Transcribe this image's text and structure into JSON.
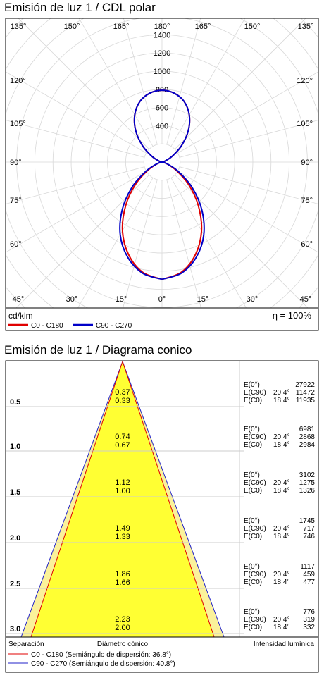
{
  "polar": {
    "title": "Emisión de luz 1 / CDL polar",
    "unit": "cd/klm",
    "efficiency": "η = 100%",
    "radial_ticks": [
      400,
      600,
      800,
      1000,
      1200,
      1400
    ],
    "angle_labels_top": [
      "135°",
      "150°",
      "165°",
      "180°",
      "165°",
      "150°",
      "135°"
    ],
    "angle_labels_bottom": [
      "45°",
      "30°",
      "15°",
      "0°",
      "15°",
      "30°",
      "45°"
    ],
    "angle_labels_side": [
      "120°",
      "105°",
      "90°",
      "75°",
      "60°"
    ],
    "legend": [
      {
        "label": "C0 - C180",
        "color": "#e00000"
      },
      {
        "label": "C90 - C270",
        "color": "#0000c8"
      }
    ]
  },
  "cone": {
    "title": "Emisión de luz 1 / Diagrama conico",
    "footer": {
      "left": "Separación",
      "center": "Diámetro cónico",
      "right": "Intensidad lumínica"
    },
    "legend": [
      {
        "label": "C0 - C180 (Semiángulo de dispersión: 36.8°)",
        "color": "#e00000"
      },
      {
        "label": "C90 - C270 (Semiángulo de dispersión: 40.8°)",
        "color": "#2020c8"
      }
    ],
    "rows": [
      {
        "distance": "0.5",
        "d1": "0.37",
        "d2": "0.33",
        "e0_label": "E(0°)",
        "e0": "27922",
        "e90_label": "E(C90)",
        "e90_angle": "20.4°",
        "e90": "11472",
        "ec0_label": "E(C0)",
        "ec0_angle": "18.4°",
        "ec0": "11935"
      },
      {
        "distance": "1.0",
        "d1": "0.74",
        "d2": "0.67",
        "e0_label": "E(0°)",
        "e0": "6981",
        "e90_label": "E(C90)",
        "e90_angle": "20.4°",
        "e90": "2868",
        "ec0_label": "E(C0)",
        "ec0_angle": "18.4°",
        "ec0": "2984"
      },
      {
        "distance": "1.5",
        "d1": "1.12",
        "d2": "1.00",
        "e0_label": "E(0°)",
        "e0": "3102",
        "e90_label": "E(C90)",
        "e90_angle": "20.4°",
        "e90": "1275",
        "ec0_label": "E(C0)",
        "ec0_angle": "18.4°",
        "ec0": "1326"
      },
      {
        "distance": "2.0",
        "d1": "1.49",
        "d2": "1.33",
        "e0_label": "E(0°)",
        "e0": "1745",
        "e90_label": "E(C90)",
        "e90_angle": "20.4°",
        "e90": "717",
        "ec0_label": "E(C0)",
        "ec0_angle": "18.4°",
        "ec0": "746"
      },
      {
        "distance": "2.5",
        "d1": "1.86",
        "d2": "1.66",
        "e0_label": "E(0°)",
        "e0": "1117",
        "e90_label": "E(C90)",
        "e90_angle": "20.4°",
        "e90": "459",
        "ec0_label": "E(C0)",
        "ec0_angle": "18.4°",
        "ec0": "477"
      },
      {
        "distance": "3.0",
        "d1": "2.23",
        "d2": "2.00",
        "e0_label": "E(0°)",
        "e0": "776",
        "e90_label": "E(C90)",
        "e90_angle": "20.4°",
        "e90": "319",
        "ec0_label": "E(C0)",
        "ec0_angle": "18.4°",
        "ec0": "332"
      }
    ]
  },
  "chart_data": [
    {
      "type": "polar",
      "title": "Emisión de luz 1 / CDL polar",
      "unit": "cd/klm",
      "rlim": [
        0,
        1500
      ],
      "radial_ticks": [
        400,
        600,
        800,
        1000,
        1200,
        1400
      ],
      "angle_step_deg": 15,
      "series": [
        {
          "name": "C0 - C180",
          "color": "#e00000",
          "angles_deg": [
            0,
            10,
            20,
            30,
            40,
            50,
            60,
            70,
            80,
            90,
            100,
            110,
            120,
            130,
            140,
            150,
            160,
            170,
            180
          ],
          "values": [
            1290,
            1230,
            1080,
            870,
            620,
            380,
            180,
            60,
            10,
            0,
            10,
            40,
            130,
            280,
            450,
            600,
            710,
            770,
            790
          ]
        },
        {
          "name": "C90 - C270",
          "color": "#0000c8",
          "angles_deg": [
            0,
            10,
            20,
            30,
            40,
            50,
            60,
            70,
            80,
            90,
            100,
            110,
            120,
            130,
            140,
            150,
            160,
            170,
            180
          ],
          "values": [
            1290,
            1240,
            1110,
            920,
            680,
            430,
            210,
            70,
            12,
            0,
            10,
            40,
            130,
            280,
            450,
            600,
            710,
            770,
            790
          ]
        }
      ]
    },
    {
      "type": "table",
      "title": "Emisión de luz 1 / Diagrama conico",
      "columns": [
        "Separación",
        "Diámetro cónico C90 - C270",
        "Diámetro cónico C0 - C180",
        "E(0°)",
        "E(C90) 20.4°",
        "E(C0) 18.4°"
      ],
      "distance": [
        0.5,
        1.0,
        1.5,
        2.0,
        2.5,
        3.0
      ],
      "diameter_c90_c270": [
        0.37,
        0.74,
        1.12,
        1.49,
        1.86,
        2.23
      ],
      "diameter_c0_c180": [
        0.33,
        0.67,
        1.0,
        1.33,
        1.66,
        2.0
      ],
      "e0": [
        27922,
        6981,
        3102,
        1745,
        1117,
        776
      ],
      "e_c90": [
        11472,
        2868,
        1275,
        717,
        459,
        319
      ],
      "e_c0": [
        11935,
        2984,
        1326,
        746,
        477,
        332
      ],
      "half_angles_deg": {
        "C0 - C180": 36.8,
        "C90 - C270": 40.8
      }
    }
  ]
}
